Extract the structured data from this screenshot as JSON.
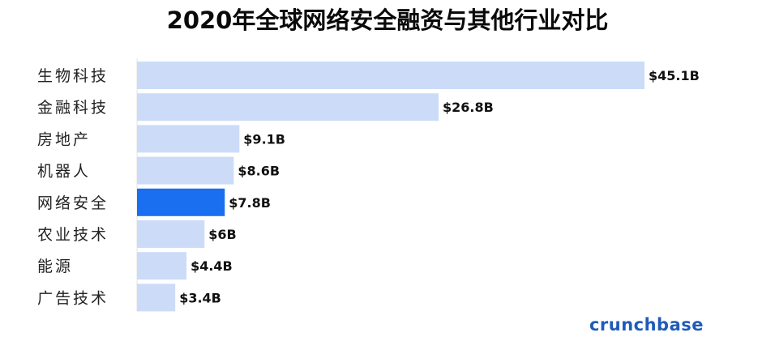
{
  "chart_data": {
    "type": "bar",
    "orientation": "horizontal",
    "title": "2020年全球网络安全融资与其他行业对比",
    "categories": [
      "生物科技",
      "金融科技",
      "房地产",
      "机器人",
      "网络安全",
      "农业技术",
      "能源",
      "广告技术"
    ],
    "values": [
      45.1,
      26.8,
      9.1,
      8.6,
      7.8,
      6,
      4.4,
      3.4
    ],
    "value_labels": [
      "$45.1B",
      "$26.8B",
      "$9.1B",
      "$8.6B",
      "$7.8B",
      "$6B",
      "$4.4B",
      "$3.4B"
    ],
    "unit": "B (USD)",
    "highlight_category": "网络安全",
    "colors": {
      "default": "#ccdcf8",
      "highlight": "#1a6ef0"
    },
    "grid": false,
    "legend": "none"
  },
  "brand": {
    "text": "crunchbase",
    "color": "#1f5cb8"
  }
}
